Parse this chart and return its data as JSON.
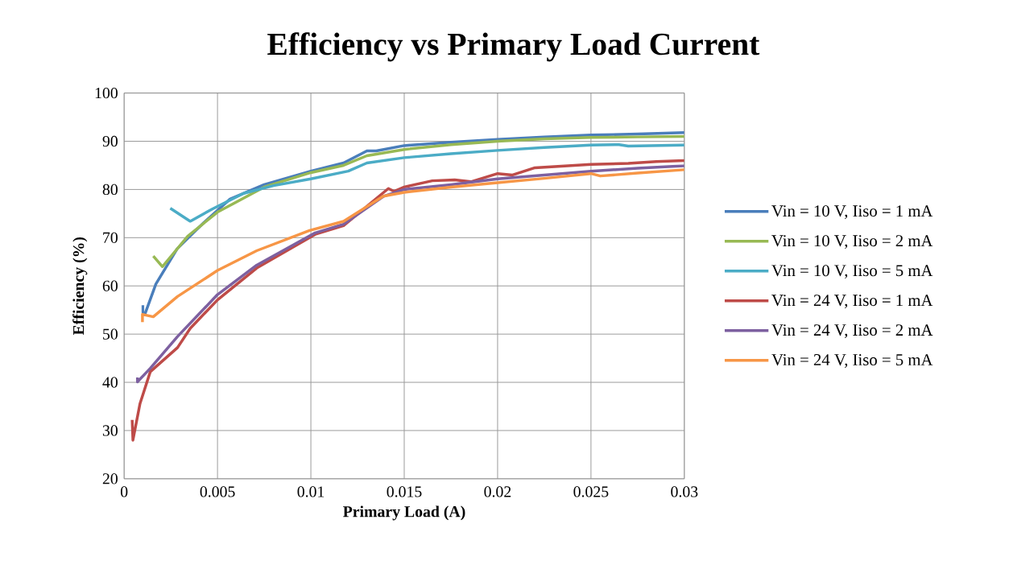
{
  "chart_data": {
    "type": "line",
    "title": "Efficiency vs Primary Load Current",
    "xlabel": "Primary Load (A)",
    "ylabel": "Efficiency (%)",
    "xlim": [
      0,
      0.03
    ],
    "ylim": [
      20,
      100
    ],
    "xticks": [
      0,
      0.005,
      0.01,
      0.015,
      0.02,
      0.025,
      0.03
    ],
    "yticks": [
      20,
      30,
      40,
      50,
      60,
      70,
      80,
      90,
      100
    ],
    "grid": true,
    "legend": "right",
    "marker": "none",
    "line_style": "solid",
    "series": [
      {
        "name": "Vin = 10 V, Iiso = 1 mA",
        "color": "#4a7ebb",
        "x": [
          0.001,
          0.001,
          0.0011,
          0.0017,
          0.00284,
          0.00426,
          0.00567,
          0.0075,
          0.01,
          0.01175,
          0.013,
          0.0135,
          0.015,
          0.0175,
          0.02,
          0.0225,
          0.025,
          0.0275,
          0.03
        ],
        "values": [
          56,
          54.5,
          54,
          60.4,
          67.7,
          73.1,
          78,
          81,
          83.8,
          85.5,
          88,
          88,
          89.1,
          89.8,
          90.4,
          90.9,
          91.3,
          91.5,
          91.8
        ]
      },
      {
        "name": "Vin = 10 V, Iiso = 2 mA",
        "color": "#98b954",
        "x": [
          0.00156,
          0.00205,
          0.0034,
          0.005,
          0.0075,
          0.01,
          0.01175,
          0.013,
          0.015,
          0.0175,
          0.02,
          0.0225,
          0.025,
          0.0275,
          0.03
        ],
        "values": [
          66.2,
          64,
          70.3,
          75.3,
          80.5,
          83.5,
          85,
          87,
          88.3,
          89.3,
          90,
          90.5,
          90.8,
          90.9,
          91
        ]
      },
      {
        "name": "Vin = 10 V, Iiso = 5 mA",
        "color": "#4bacc6",
        "x": [
          0.00247,
          0.00354,
          0.0047,
          0.0064,
          0.008,
          0.01,
          0.012,
          0.013,
          0.015,
          0.0175,
          0.02,
          0.0225,
          0.025,
          0.0265,
          0.027,
          0.03
        ],
        "values": [
          76.1,
          73.4,
          75.9,
          79.2,
          80.8,
          82.2,
          83.8,
          85.5,
          86.6,
          87.4,
          88.1,
          88.7,
          89.2,
          89.3,
          89,
          89.2
        ]
      },
      {
        "name": "Vin = 24 V, Iiso = 1 mA",
        "color": "#be4b48",
        "x": [
          0.00043,
          0.00047,
          0.00085,
          0.0014,
          0.00286,
          0.00354,
          0.005,
          0.0071,
          0.01023,
          0.01175,
          0.01415,
          0.01445,
          0.015,
          0.0165,
          0.0177,
          0.01857,
          0.02,
          0.0208,
          0.022,
          0.025,
          0.027,
          0.0285,
          0.03
        ],
        "values": [
          32.2,
          28,
          35.6,
          42.2,
          47.2,
          51.2,
          57.1,
          63.7,
          70.7,
          72.5,
          80.2,
          79.6,
          80.5,
          81.8,
          82,
          81.6,
          83.3,
          83,
          84.5,
          85.2,
          85.4,
          85.8,
          86
        ]
      },
      {
        "name": "Vin = 24 V, Iiso = 2 mA",
        "color": "#7d60a0",
        "x": [
          0.00071,
          0.00071,
          0.0014,
          0.00286,
          0.005,
          0.0071,
          0.01023,
          0.01175,
          0.0139,
          0.015,
          0.0175,
          0.02,
          0.0225,
          0.025,
          0.0275,
          0.03
        ],
        "values": [
          41,
          40.1,
          42.9,
          49.5,
          58.2,
          64.3,
          71,
          72.8,
          78.6,
          80,
          81,
          82.2,
          83,
          83.8,
          84.4,
          84.9
        ]
      },
      {
        "name": "Vin = 24 V, Iiso = 5 mA",
        "color": "#f79646",
        "x": [
          0.00098,
          0.00098,
          0.00156,
          0.00286,
          0.005,
          0.0071,
          0.00993,
          0.01175,
          0.01388,
          0.015,
          0.0175,
          0.02,
          0.0225,
          0.025,
          0.0255,
          0.0275,
          0.03
        ],
        "values": [
          52.5,
          54.1,
          53.6,
          57.8,
          63.2,
          67.3,
          71.5,
          73.4,
          78.6,
          79.4,
          80.5,
          81.4,
          82.3,
          83.3,
          82.8,
          83.4,
          84.1
        ]
      }
    ]
  }
}
